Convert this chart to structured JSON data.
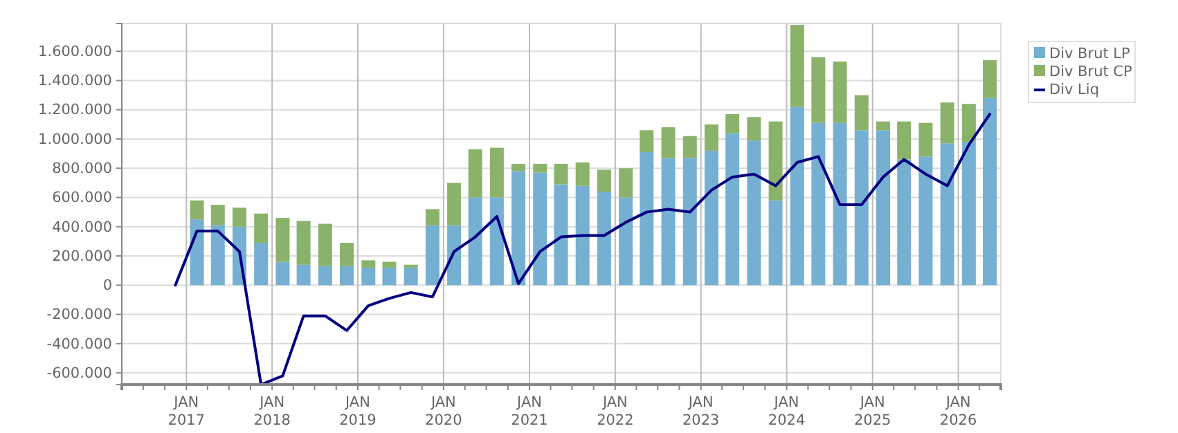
{
  "chart_data": {
    "type": "bar",
    "stacked": true,
    "x": [
      "2016-11-15",
      "2017-02-15",
      "2017-05-15",
      "2017-08-15",
      "2017-11-15",
      "2018-02-15",
      "2018-05-15",
      "2018-08-15",
      "2018-11-15",
      "2019-02-15",
      "2019-05-15",
      "2019-08-15",
      "2019-11-15",
      "2020-02-15",
      "2020-05-15",
      "2020-08-15",
      "2020-11-15",
      "2021-02-15",
      "2021-05-15",
      "2021-08-15",
      "2021-11-15",
      "2022-02-15",
      "2022-05-15",
      "2022-08-15",
      "2022-11-15",
      "2023-02-15",
      "2023-05-15",
      "2023-08-15",
      "2023-11-15",
      "2024-02-15",
      "2024-05-15",
      "2024-08-15",
      "2024-11-15",
      "2025-02-15",
      "2025-05-15",
      "2025-08-15",
      "2025-11-15",
      "2026-02-15",
      "2026-05-15"
    ],
    "series": [
      {
        "name": "Div Brut LP",
        "color": "#75b0d3",
        "values": [
          0,
          450000,
          410000,
          400000,
          290000,
          160000,
          140000,
          130000,
          130000,
          120000,
          120000,
          120000,
          410000,
          410000,
          600000,
          600000,
          780000,
          770000,
          690000,
          680000,
          640000,
          600000,
          910000,
          870000,
          870000,
          920000,
          1040000,
          990000,
          580000,
          1220000,
          1110000,
          1110000,
          1060000,
          1060000,
          860000,
          880000,
          970000,
          980000,
          1280000
        ]
      },
      {
        "name": "Div Brut CP",
        "color": "#8bb26a",
        "values": [
          0,
          130000,
          140000,
          130000,
          200000,
          300000,
          300000,
          290000,
          160000,
          50000,
          40000,
          20000,
          110000,
          290000,
          330000,
          340000,
          50000,
          60000,
          140000,
          160000,
          150000,
          200000,
          150000,
          210000,
          150000,
          180000,
          130000,
          160000,
          540000,
          560000,
          450000,
          420000,
          240000,
          60000,
          260000,
          230000,
          280000,
          260000,
          260000
        ]
      },
      {
        "name": "Div Liq",
        "type": "line",
        "color": "#000080",
        "values": [
          0,
          370000,
          370000,
          230000,
          -680000,
          -620000,
          -210000,
          -210000,
          -310000,
          -140000,
          -90000,
          -50000,
          -80000,
          230000,
          330000,
          470000,
          10000,
          230000,
          330000,
          340000,
          340000,
          430000,
          500000,
          520000,
          500000,
          650000,
          740000,
          760000,
          680000,
          840000,
          880000,
          550000,
          550000,
          740000,
          860000,
          760000,
          680000,
          960000,
          1170000
        ]
      }
    ],
    "xlim": [
      "2016-04-01",
      "2026-07-01"
    ],
    "xticks": [
      {
        "value": "2016-04-01",
        "label": null
      },
      {
        "value": "2016-07-01",
        "label": null
      },
      {
        "value": "2016-10-01",
        "label": null
      },
      {
        "value": "2017-01-01",
        "label": "JAN\n2017"
      },
      {
        "value": "2017-04-01",
        "label": null
      },
      {
        "value": "2017-07-01",
        "label": null
      },
      {
        "value": "2017-10-01",
        "label": null
      },
      {
        "value": "2018-01-01",
        "label": "JAN\n2018"
      },
      {
        "value": "2018-04-01",
        "label": null
      },
      {
        "value": "2018-07-01",
        "label": null
      },
      {
        "value": "2018-10-01",
        "label": null
      },
      {
        "value": "2019-01-01",
        "label": "JAN\n2019"
      },
      {
        "value": "2019-04-01",
        "label": null
      },
      {
        "value": "2019-07-01",
        "label": null
      },
      {
        "value": "2019-10-01",
        "label": null
      },
      {
        "value": "2020-01-01",
        "label": "JAN\n2020"
      },
      {
        "value": "2020-04-01",
        "label": null
      },
      {
        "value": "2020-07-01",
        "label": null
      },
      {
        "value": "2020-10-01",
        "label": null
      },
      {
        "value": "2021-01-01",
        "label": "JAN\n2021"
      },
      {
        "value": "2021-04-01",
        "label": null
      },
      {
        "value": "2021-07-01",
        "label": null
      },
      {
        "value": "2021-10-01",
        "label": null
      },
      {
        "value": "2022-01-01",
        "label": "JAN\n2022"
      },
      {
        "value": "2022-04-01",
        "label": null
      },
      {
        "value": "2022-07-01",
        "label": null
      },
      {
        "value": "2022-10-01",
        "label": null
      },
      {
        "value": "2023-01-01",
        "label": "JAN\n2023"
      },
      {
        "value": "2023-04-01",
        "label": null
      },
      {
        "value": "2023-07-01",
        "label": null
      },
      {
        "value": "2023-10-01",
        "label": null
      },
      {
        "value": "2024-01-01",
        "label": "JAN\n2024"
      },
      {
        "value": "2024-04-01",
        "label": null
      },
      {
        "value": "2024-07-01",
        "label": null
      },
      {
        "value": "2024-10-01",
        "label": null
      },
      {
        "value": "2025-01-01",
        "label": "JAN\n2025"
      },
      {
        "value": "2025-04-01",
        "label": null
      },
      {
        "value": "2025-07-01",
        "label": null
      },
      {
        "value": "2025-10-01",
        "label": null
      },
      {
        "value": "2026-01-01",
        "label": "JAN\n2026"
      },
      {
        "value": "2026-04-01",
        "label": null
      }
    ],
    "ylim": [
      -680000,
      1790000
    ],
    "yticks": [
      {
        "value": -600000,
        "label": "-600.000"
      },
      {
        "value": -400000,
        "label": "-400.000"
      },
      {
        "value": -200000,
        "label": "-200.000"
      },
      {
        "value": 0,
        "label": "0"
      },
      {
        "value": 200000,
        "label": "200.000"
      },
      {
        "value": 400000,
        "label": "400.000"
      },
      {
        "value": 600000,
        "label": "600.000"
      },
      {
        "value": 800000,
        "label": "800.000"
      },
      {
        "value": 1000000,
        "label": "1.000.000"
      },
      {
        "value": 1200000,
        "label": "1.200.000"
      },
      {
        "value": 1400000,
        "label": "1.400.000"
      },
      {
        "value": 1600000,
        "label": "1.600.000"
      }
    ],
    "grid": true,
    "legend": "top right"
  }
}
